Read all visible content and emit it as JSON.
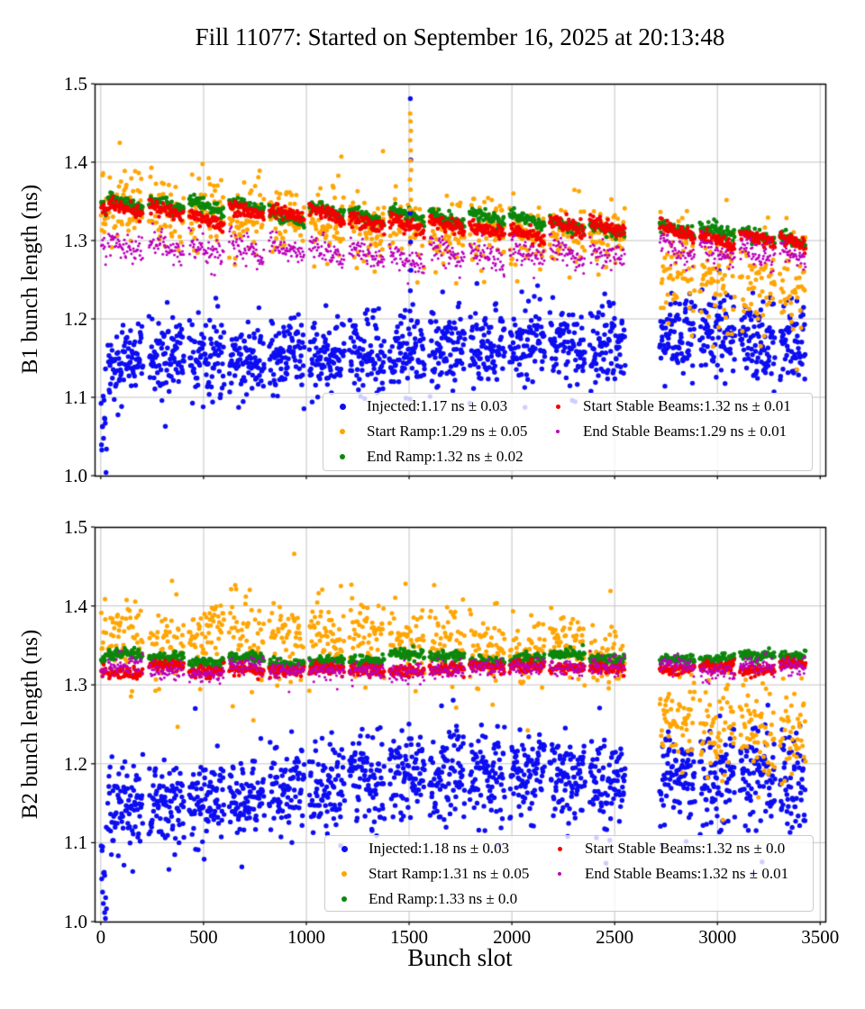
{
  "title": "Fill 11077: Started on September 16, 2025 at 20:13:48",
  "xlabel": "Bunch slot",
  "figure_bg": "#ffffff",
  "grid_color": "#bcbcbc",
  "spine_color": "#000000",
  "trains": [
    [
      2,
      28
    ],
    [
      35,
      205
    ],
    [
      235,
      405
    ],
    [
      430,
      600
    ],
    [
      625,
      795
    ],
    [
      820,
      990
    ],
    [
      1015,
      1185
    ],
    [
      1210,
      1380
    ],
    [
      1405,
      1575
    ],
    [
      1600,
      1770
    ],
    [
      1795,
      1965
    ],
    [
      1990,
      2160
    ],
    [
      2185,
      2355
    ],
    [
      2380,
      2550
    ],
    [
      2720,
      2890
    ],
    [
      2915,
      3085
    ],
    [
      3110,
      3280
    ],
    [
      3305,
      3428
    ]
  ],
  "xticks": [
    {
      "v": 0,
      "label": "0"
    },
    {
      "v": 500,
      "label": "500"
    },
    {
      "v": 1000,
      "label": "1000"
    },
    {
      "v": 1500,
      "label": "1500"
    },
    {
      "v": 2000,
      "label": "2000"
    },
    {
      "v": 2500,
      "label": "2500"
    },
    {
      "v": 3000,
      "label": "3000"
    },
    {
      "v": 3500,
      "label": "3500"
    }
  ],
  "yticks": [
    {
      "v": 1.0,
      "label": "1.0"
    },
    {
      "v": 1.1,
      "label": "1.1"
    },
    {
      "v": 1.2,
      "label": "1.2"
    },
    {
      "v": 1.3,
      "label": "1.3"
    },
    {
      "v": 1.4,
      "label": "1.4"
    },
    {
      "v": 1.5,
      "label": "1.5"
    }
  ],
  "xlim": [
    -30,
    3525
  ],
  "ylim": [
    1.0,
    1.5
  ],
  "chart_data": [
    {
      "type": "scatter",
      "ylabel": "B1 bunch length (ns)",
      "grid": true,
      "legend_position": "lower right",
      "series": [
        {
          "key": "injected",
          "label": "Injected:1.17 ns ± 0.03",
          "color": "#0d0df2",
          "r": 2.7,
          "step": 2,
          "slope": 0,
          "stats": {
            "mean": 1.17,
            "std": 0.03
          },
          "mean": [
            [
              0,
              1.14
            ],
            [
              200,
              1.155
            ],
            [
              700,
              1.158
            ],
            [
              1300,
              1.155
            ],
            [
              1900,
              1.165
            ],
            [
              2500,
              1.172
            ],
            [
              3000,
              1.178
            ],
            [
              3430,
              1.168
            ]
          ],
          "spread": [
            [
              0,
              0.024
            ],
            [
              3430,
              0.027
            ]
          ],
          "up": {
            "p": 0.02,
            "amp": 0.05
          },
          "down": {
            "p": 0.05,
            "amp": 0.07
          },
          "pilot": {
            "mean": 1.06,
            "spread": 0.038
          }
        },
        {
          "key": "start_ramp",
          "label": "Start Ramp:1.29 ns ± 0.05",
          "color": "#ffa503",
          "r": 2.5,
          "step": 3,
          "slope": 0,
          "stats": {
            "mean": 1.29,
            "std": 0.05
          },
          "mean": [
            [
              0,
              1.333
            ],
            [
              600,
              1.328
            ],
            [
              1200,
              1.32
            ],
            [
              1800,
              1.312
            ],
            [
              2400,
              1.303
            ],
            [
              2550,
              1.3
            ],
            [
              2720,
              1.258
            ],
            [
              3000,
              1.25
            ],
            [
              3430,
              1.228
            ]
          ],
          "spread": [
            [
              0,
              0.017
            ],
            [
              2550,
              0.015
            ],
            [
              2720,
              0.028
            ],
            [
              3430,
              0.031
            ]
          ],
          "up": {
            "p": 0.32,
            "amp": [
              [
                0,
                0.062
              ],
              [
                500,
                0.07
              ],
              [
                1200,
                0.05
              ],
              [
                2400,
                0.042
              ],
              [
                2720,
                0.045
              ],
              [
                3430,
                0.05
              ]
            ]
          },
          "down": {
            "p": 0.14,
            "amp": 0.05
          }
        },
        {
          "key": "end_ramp",
          "label": "End Ramp:1.32 ns ± 0.02",
          "color": "#0c870c",
          "r": 2.4,
          "step": 3,
          "slope": -0.012,
          "stats": {
            "mean": 1.32,
            "std": 0.02
          },
          "mean": [
            [
              0,
              1.349
            ],
            [
              600,
              1.344
            ],
            [
              1200,
              1.337
            ],
            [
              1800,
              1.329
            ],
            [
              2400,
              1.321
            ],
            [
              2720,
              1.317
            ],
            [
              3430,
              1.306
            ]
          ],
          "spread": 0.004
        },
        {
          "key": "start_stable",
          "label": "Start Stable Beams:1.32 ns ± 0.01",
          "color": "#f40000",
          "r": 2.3,
          "step": 3,
          "slope": -0.012,
          "stats": {
            "mean": 1.32,
            "std": 0.01
          },
          "mean": [
            [
              0,
              1.338
            ],
            [
              600,
              1.334
            ],
            [
              1200,
              1.327
            ],
            [
              1800,
              1.319
            ],
            [
              2400,
              1.311
            ],
            [
              2720,
              1.308
            ],
            [
              3430,
              1.297
            ]
          ],
          "spread": 0.0045
        },
        {
          "key": "end_stable",
          "label": "End Stable Beams:1.29 ns ± 0.01",
          "color": "#bb00bb",
          "r": 1.5,
          "step": 3,
          "slope": -0.018,
          "stats": {
            "mean": 1.29,
            "std": 0.01
          },
          "mean": [
            [
              0,
              1.296
            ],
            [
              600,
              1.292
            ],
            [
              1200,
              1.287
            ],
            [
              1800,
              1.282
            ],
            [
              2400,
              1.279
            ],
            [
              2720,
              1.29
            ],
            [
              3430,
              1.286
            ]
          ],
          "spread": 0.008,
          "down": {
            "p": 0.06,
            "amp": 0.022
          }
        }
      ],
      "extras": [
        {
          "series": 0,
          "points": [
            [
              1506,
              1.481
            ],
            [
              1508,
              1.403
            ],
            [
              1505,
              1.335
            ],
            [
              1507,
              1.298
            ],
            [
              1509,
              1.262
            ],
            [
              1506,
              1.236
            ],
            [
              1504,
              1.21
            ]
          ]
        },
        {
          "series": 1,
          "points": [
            [
              1505,
              1.462
            ],
            [
              1507,
              1.452
            ],
            [
              1509,
              1.44
            ],
            [
              1505,
              1.428
            ],
            [
              1508,
              1.415
            ],
            [
              1506,
              1.402
            ],
            [
              1510,
              1.39
            ],
            [
              1504,
              1.378
            ],
            [
              1507,
              1.365
            ],
            [
              1509,
              1.352
            ],
            [
              1505,
              1.34
            ],
            [
              1373,
              1.414
            ]
          ]
        }
      ]
    },
    {
      "type": "scatter",
      "ylabel": "B2 bunch length (ns)",
      "grid": true,
      "legend_position": "lower right",
      "series": [
        {
          "key": "injected",
          "label": "Injected:1.18 ns ± 0.03",
          "color": "#0d0df2",
          "r": 2.7,
          "step": 2,
          "slope": 0,
          "stats": {
            "mean": 1.18,
            "std": 0.03
          },
          "mean": [
            [
              0,
              1.135
            ],
            [
              300,
              1.15
            ],
            [
              900,
              1.172
            ],
            [
              1500,
              1.19
            ],
            [
              2100,
              1.186
            ],
            [
              2700,
              1.19
            ],
            [
              3430,
              1.178
            ]
          ],
          "spread": [
            [
              0,
              0.026
            ],
            [
              2600,
              0.028
            ],
            [
              3430,
              0.033
            ]
          ],
          "up": {
            "p": 0.02,
            "amp": 0.04
          },
          "down": {
            "p": 0.05,
            "amp": 0.07
          },
          "pilot": {
            "mean": 1.05,
            "spread": 0.035
          }
        },
        {
          "key": "start_ramp",
          "label": "Start Ramp:1.31 ns ± 0.05",
          "color": "#ffa503",
          "r": 2.5,
          "step": 3,
          "slope": 0,
          "stats": {
            "mean": 1.31,
            "std": 0.05
          },
          "mean": [
            [
              0,
              1.352
            ],
            [
              600,
              1.36
            ],
            [
              1200,
              1.357
            ],
            [
              1800,
              1.352
            ],
            [
              2400,
              1.34
            ],
            [
              2550,
              1.332
            ],
            [
              2720,
              1.258
            ],
            [
              3430,
              1.238
            ]
          ],
          "spread": [
            [
              0,
              0.019
            ],
            [
              2550,
              0.019
            ],
            [
              2720,
              0.027
            ],
            [
              3430,
              0.03
            ]
          ],
          "up": {
            "p": 0.3,
            "amp": [
              [
                0,
                0.05
              ],
              [
                1200,
                0.055
              ],
              [
                2400,
                0.042
              ],
              [
                3430,
                0.045
              ]
            ]
          },
          "down": {
            "p": 0.13,
            "amp": 0.06
          }
        },
        {
          "key": "end_ramp",
          "label": "End Ramp:1.33 ns ± 0.0",
          "color": "#0c870c",
          "r": 2.4,
          "step": 3,
          "slope": 0,
          "stats": {
            "mean": 1.33,
            "std": 0.0
          },
          "mean": [
            [
              0,
              1.331
            ],
            [
              3430,
              1.334
            ]
          ],
          "spread": 0.0035
        },
        {
          "key": "start_stable",
          "label": "Start Stable Beams:1.32 ns ± 0.0",
          "color": "#f40000",
          "r": 2.3,
          "step": 3,
          "slope": 0,
          "stats": {
            "mean": 1.32,
            "std": 0.0
          },
          "mean": [
            [
              0,
              1.3215
            ],
            [
              3430,
              1.3225
            ]
          ],
          "spread": 0.0035
        },
        {
          "key": "end_stable",
          "label": "End Stable Beams:1.32 ns ± 0.01",
          "color": "#bb00bb",
          "r": 1.5,
          "step": 3,
          "slope": 0,
          "stats": {
            "mean": 1.32,
            "std": 0.01
          },
          "mean": [
            [
              0,
              1.319
            ],
            [
              3430,
              1.322
            ]
          ],
          "spread": 0.0055,
          "down": {
            "p": 0.06,
            "amp": 0.018
          }
        }
      ],
      "extras": []
    }
  ]
}
